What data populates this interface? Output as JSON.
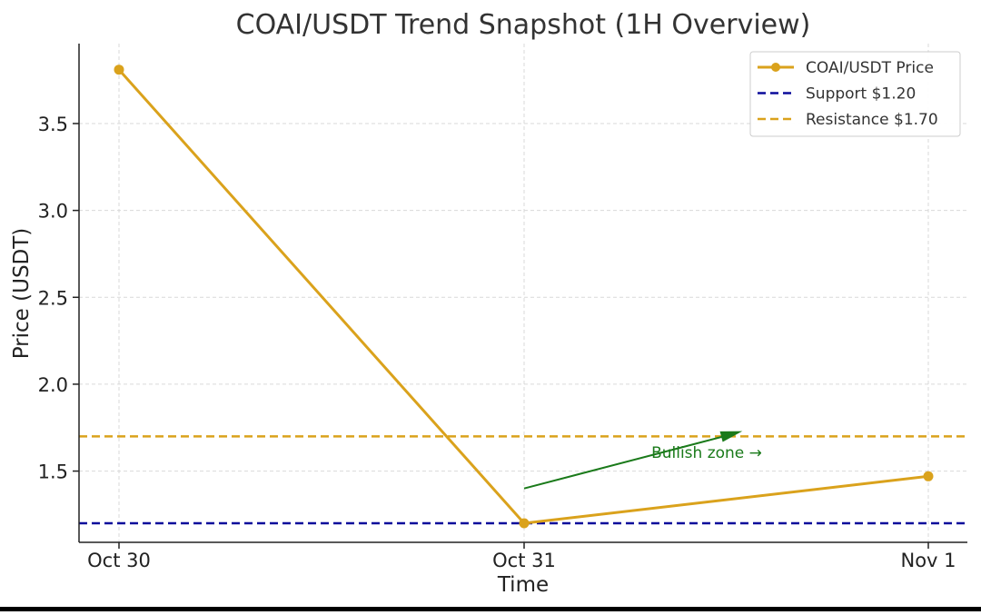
{
  "chart_data": {
    "type": "line",
    "title": "COAI/USDT Trend Snapshot (1H Overview)",
    "xlabel": "Time",
    "ylabel": "Price (USDT)",
    "categories": [
      "Oct 30",
      "Oct 31",
      "Nov 1"
    ],
    "series": [
      {
        "name": "COAI/USDT Price",
        "values": [
          3.81,
          1.2,
          1.47
        ],
        "color": "#daa21c"
      }
    ],
    "hlines": [
      {
        "name": "Support $1.20",
        "value": 1.2,
        "color": "#0b0b9b",
        "style": "dashed"
      },
      {
        "name": "Resistance $1.70",
        "value": 1.7,
        "color": "#daa21c",
        "style": "dashed"
      }
    ],
    "annotation": {
      "text": "Bullish zone →",
      "color": "#1a7a1a",
      "arrow_from": {
        "x": "Oct 31",
        "y": 1.4
      },
      "arrow_to": {
        "x_fraction_between_oct31_nov1": 0.54,
        "y": 1.73
      }
    },
    "yticks": [
      1.5,
      2.0,
      2.5,
      3.0,
      3.5
    ],
    "ytick_labels": [
      "1.5",
      "2.0",
      "2.5",
      "3.0",
      "3.5"
    ],
    "ylim": [
      1.09,
      3.96
    ],
    "grid": true,
    "legend_position": "top-right"
  }
}
